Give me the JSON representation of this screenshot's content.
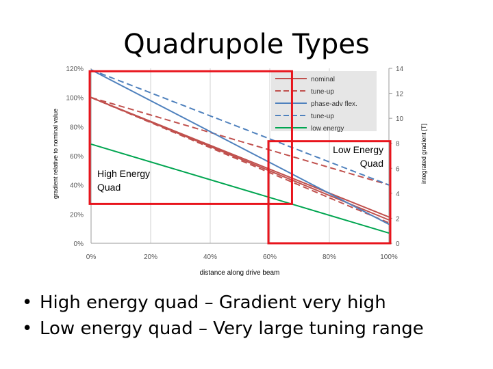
{
  "slide": {
    "title": "Quadrupole Types",
    "bullets": [
      "High energy quad – Gradient very high",
      "Low energy quad – Very large tuning range"
    ]
  },
  "chart_data": {
    "type": "line",
    "xlabel": "distance along drive beam",
    "ylabel": "gradient relative to nominal value",
    "y2label": "integrated gradient [T]",
    "xlim": [
      0,
      100
    ],
    "ylim": [
      0,
      120
    ],
    "y2lim": [
      0,
      14
    ],
    "x_ticks": [
      "0%",
      "20%",
      "40%",
      "60%",
      "80%",
      "100%"
    ],
    "y_ticks": [
      "0%",
      "20%",
      "40%",
      "60%",
      "80%",
      "100%",
      "120%"
    ],
    "y2_ticks": [
      "0",
      "2",
      "4",
      "6",
      "8",
      "10",
      "12",
      "14"
    ],
    "grid": "vertical",
    "legend_position": "top-right",
    "series": [
      {
        "name": "nominal",
        "color": "#c0504d",
        "dash": "solid",
        "x": [
          0,
          100
        ],
        "y": [
          100,
          18
        ]
      },
      {
        "name": "tune-up",
        "color": "#c0504d",
        "dash": "dashed",
        "x": [
          0,
          100
        ],
        "y": [
          100,
          40
        ]
      },
      {
        "name": "phase-adv flex.",
        "color": "#4f81bd",
        "dash": "solid",
        "x": [
          0,
          100
        ],
        "y": [
          119,
          13
        ]
      },
      {
        "name": "tune-up",
        "color": "#4f81bd",
        "dash": "dashed",
        "x": [
          0,
          100
        ],
        "y": [
          119,
          40
        ]
      },
      {
        "name": "low energy",
        "color": "#00a550",
        "dash": "solid",
        "x": [
          0,
          100
        ],
        "y": [
          68,
          7
        ]
      }
    ],
    "extra_series": [
      {
        "color": "#c0504d",
        "dash": "solid",
        "x": [
          0,
          100
        ],
        "y": [
          100,
          16
        ]
      },
      {
        "color": "#c0504d",
        "dash": "dashed",
        "x": [
          0,
          100
        ],
        "y": [
          100,
          14
        ]
      }
    ],
    "annotations": [
      {
        "label": "High Energy Quad",
        "lines": [
          "High Energy",
          "Quad"
        ],
        "x_range": [
          0,
          67
        ],
        "y_range": [
          27,
          118
        ]
      },
      {
        "label": "Low Energy Quad",
        "lines": [
          "Low Energy",
          "Quad"
        ],
        "x_range": [
          60,
          100
        ],
        "y_range": [
          0,
          70
        ]
      }
    ]
  }
}
